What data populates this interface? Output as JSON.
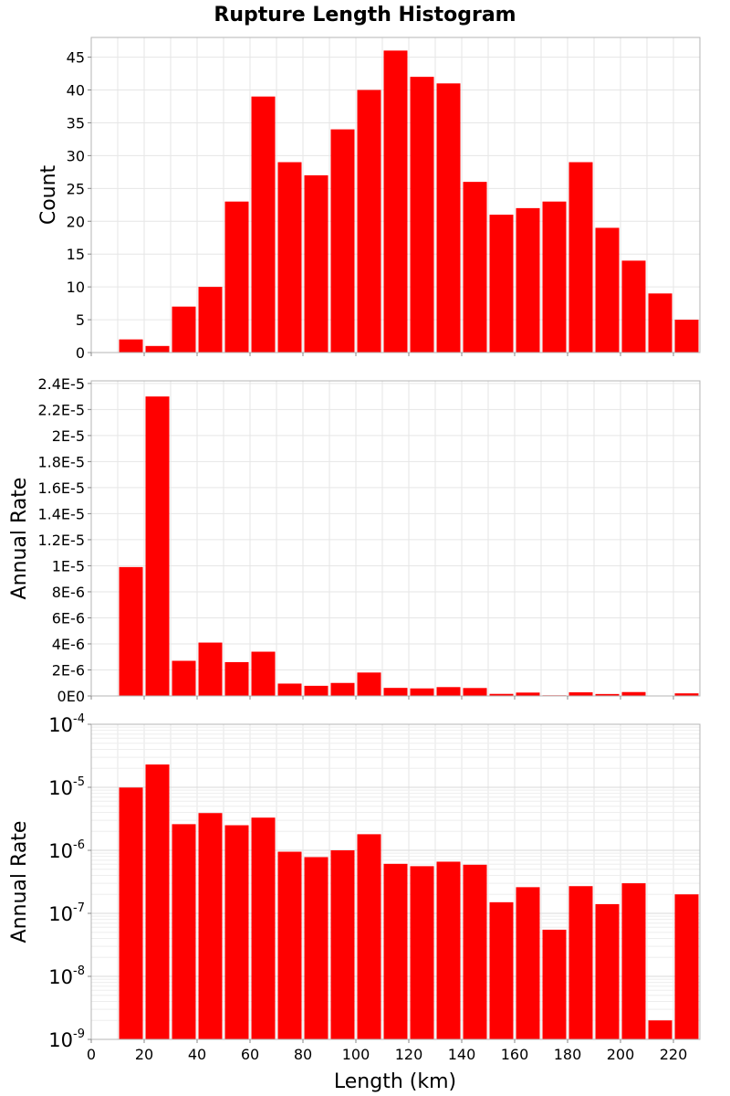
{
  "title": "Rupture Length Histogram",
  "xlabel": "Length (km)",
  "colors": {
    "bar": "#ff0000",
    "grid": "#e6e6e6",
    "frame": "#b4b4b4"
  },
  "chart_data": [
    {
      "type": "bar",
      "ylabel": "Count",
      "yscale": "linear",
      "xlim": [
        0,
        230
      ],
      "ylim": [
        0,
        48
      ],
      "bin_width": 10,
      "x": [
        15,
        25,
        35,
        45,
        55,
        65,
        75,
        85,
        95,
        105,
        115,
        125,
        135,
        145,
        155,
        165,
        175,
        185,
        195,
        205,
        215,
        225
      ],
      "values": [
        2,
        1,
        7,
        10,
        23,
        39,
        29,
        27,
        34,
        40,
        46,
        42,
        41,
        26,
        21,
        22,
        23,
        29,
        19,
        14,
        9,
        5
      ],
      "y_ticks": [
        0,
        5,
        10,
        15,
        20,
        25,
        30,
        35,
        40,
        45
      ],
      "y_tick_labels": [
        "0",
        "5",
        "10",
        "15",
        "20",
        "25",
        "30",
        "35",
        "40",
        "45"
      ],
      "grid": true
    },
    {
      "type": "bar",
      "ylabel": "Annual Rate",
      "yscale": "linear",
      "xlim": [
        0,
        230
      ],
      "ylim": [
        0,
        2.42e-05
      ],
      "bin_width": 10,
      "x": [
        15,
        25,
        35,
        45,
        55,
        65,
        75,
        85,
        95,
        105,
        115,
        125,
        135,
        145,
        155,
        165,
        175,
        185,
        195,
        205,
        215,
        225
      ],
      "values": [
        9.9e-06,
        2.3e-05,
        2.7e-06,
        4.1e-06,
        2.6e-06,
        3.4e-06,
        9.5e-07,
        7.8e-07,
        1e-06,
        1.8e-06,
        6.2e-07,
        5.8e-07,
        6.8e-07,
        6.1e-07,
        1.6e-07,
        2.6e-07,
        5e-08,
        2.8e-07,
        1.5e-07,
        3e-07,
        2e-09,
        2e-07
      ],
      "y_ticks": [
        0,
        2e-06,
        4e-06,
        6e-06,
        8e-06,
        1e-05,
        1.2e-05,
        1.4e-05,
        1.6e-05,
        1.8e-05,
        2e-05,
        2.2e-05,
        2.4e-05
      ],
      "y_tick_labels": [
        "0E0",
        "2E-6",
        "4E-6",
        "6E-6",
        "8E-6",
        "1E-5",
        "1.2E-5",
        "1.4E-5",
        "1.6E-5",
        "1.8E-5",
        "2E-5",
        "2.2E-5",
        "2.4E-5"
      ],
      "grid": true
    },
    {
      "type": "bar",
      "ylabel": "Annual Rate",
      "yscale": "log",
      "xlim": [
        0,
        230
      ],
      "ylim": [
        1e-09,
        0.0001
      ],
      "bin_width": 10,
      "x": [
        15,
        25,
        35,
        45,
        55,
        65,
        75,
        85,
        95,
        105,
        115,
        125,
        135,
        145,
        155,
        165,
        175,
        185,
        195,
        205,
        215,
        225
      ],
      "values": [
        9.9e-06,
        2.3e-05,
        2.6e-06,
        3.9e-06,
        2.5e-06,
        3.3e-06,
        9.5e-07,
        7.8e-07,
        1e-06,
        1.8e-06,
        6.1e-07,
        5.6e-07,
        6.6e-07,
        5.9e-07,
        1.5e-07,
        2.6e-07,
        5.5e-08,
        2.7e-07,
        1.4e-07,
        3e-07,
        2e-09,
        2e-07
      ],
      "y_ticks": [
        1e-09,
        1e-08,
        1e-07,
        1e-06,
        1e-05,
        0.0001
      ],
      "y_tick_labels": [
        {
          "base": "10",
          "exp": "-9"
        },
        {
          "base": "10",
          "exp": "-8"
        },
        {
          "base": "10",
          "exp": "-7"
        },
        {
          "base": "10",
          "exp": "-6"
        },
        {
          "base": "10",
          "exp": "-5"
        },
        {
          "base": "10",
          "exp": "-4"
        }
      ],
      "grid": true
    }
  ],
  "x_ticks": [
    0,
    20,
    40,
    60,
    80,
    100,
    120,
    140,
    160,
    180,
    200,
    220
  ],
  "x_tick_labels": [
    "0",
    "20",
    "40",
    "60",
    "80",
    "100",
    "120",
    "140",
    "160",
    "180",
    "200",
    "220"
  ]
}
